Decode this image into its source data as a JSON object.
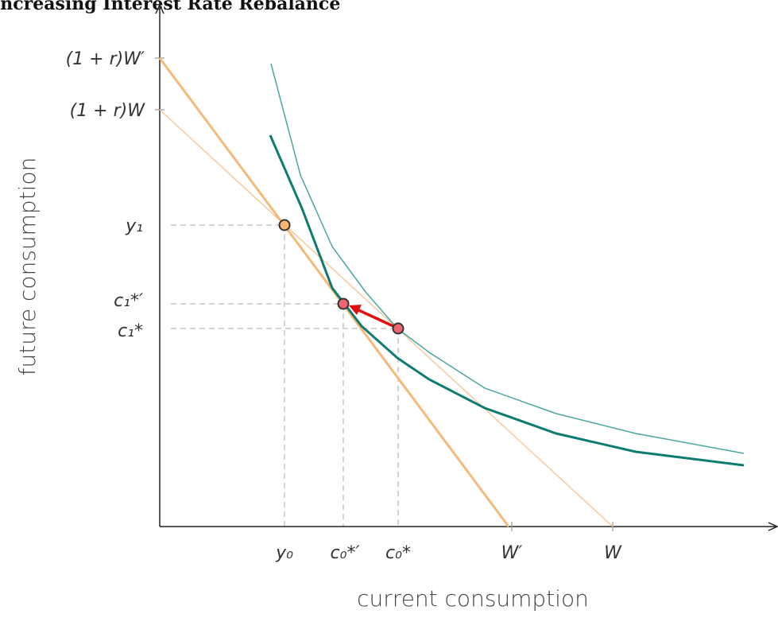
{
  "title": "Increasing Interest Rate Rebalance",
  "axes": {
    "x_label": "current consumption",
    "y_label": "future consumption"
  },
  "y_ticks": [
    "(1 + r)W′",
    "(1 + r)W",
    "y₁",
    "c₁*′",
    "c₁*"
  ],
  "x_ticks": [
    "y₀",
    "c₀*′",
    "c₀*",
    "W′",
    "W"
  ]
}
